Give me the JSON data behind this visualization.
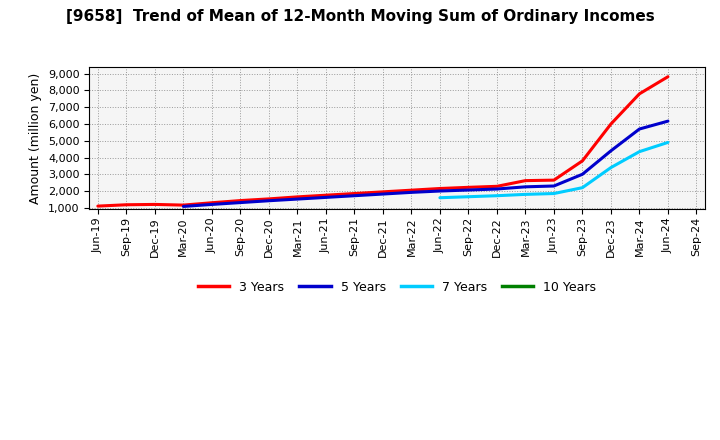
{
  "title": "[9658]  Trend of Mean of 12-Month Moving Sum of Ordinary Incomes",
  "ylabel": "Amount (million yen)",
  "ylim": [
    900,
    9400
  ],
  "yticks": [
    1000,
    2000,
    3000,
    4000,
    5000,
    6000,
    7000,
    8000,
    9000
  ],
  "background_color": "#ffffff",
  "plot_bg_color": "#f5f5f5",
  "grid_color": "#999999",
  "x_labels": [
    "Jun-19",
    "Sep-19",
    "Dec-19",
    "Mar-20",
    "Jun-20",
    "Sep-20",
    "Dec-20",
    "Mar-21",
    "Jun-21",
    "Sep-21",
    "Dec-21",
    "Mar-22",
    "Jun-22",
    "Sep-22",
    "Dec-22",
    "Mar-23",
    "Jun-23",
    "Sep-23",
    "Dec-23",
    "Mar-24",
    "Jun-24",
    "Sep-24"
  ],
  "series": {
    "3 Years": {
      "color": "#ff0000",
      "data": [
        1100,
        1180,
        1200,
        1160,
        1300,
        1430,
        1530,
        1650,
        1750,
        1850,
        1950,
        2050,
        2150,
        2220,
        2280,
        2620,
        2650,
        3800,
        6000,
        7800,
        8820,
        null
      ]
    },
    "5 Years": {
      "color": "#0000cc",
      "data": [
        null,
        null,
        null,
        1080,
        1200,
        1310,
        1420,
        1520,
        1620,
        1720,
        1820,
        1920,
        2000,
        2060,
        2120,
        2250,
        2300,
        3000,
        4400,
        5700,
        6170,
        null
      ]
    },
    "7 Years": {
      "color": "#00ccff",
      "data": [
        null,
        null,
        null,
        null,
        null,
        null,
        null,
        null,
        null,
        null,
        null,
        null,
        1600,
        1660,
        1720,
        1800,
        1850,
        2200,
        3400,
        4350,
        4900,
        null
      ]
    },
    "10 Years": {
      "color": "#008000",
      "data": [
        null,
        null,
        null,
        null,
        null,
        null,
        null,
        null,
        null,
        null,
        null,
        null,
        null,
        null,
        null,
        null,
        null,
        null,
        null,
        null,
        null,
        null
      ]
    }
  },
  "legend_labels": [
    "3 Years",
    "5 Years",
    "7 Years",
    "10 Years"
  ],
  "legend_colors": [
    "#ff0000",
    "#0000cc",
    "#00ccff",
    "#008000"
  ]
}
